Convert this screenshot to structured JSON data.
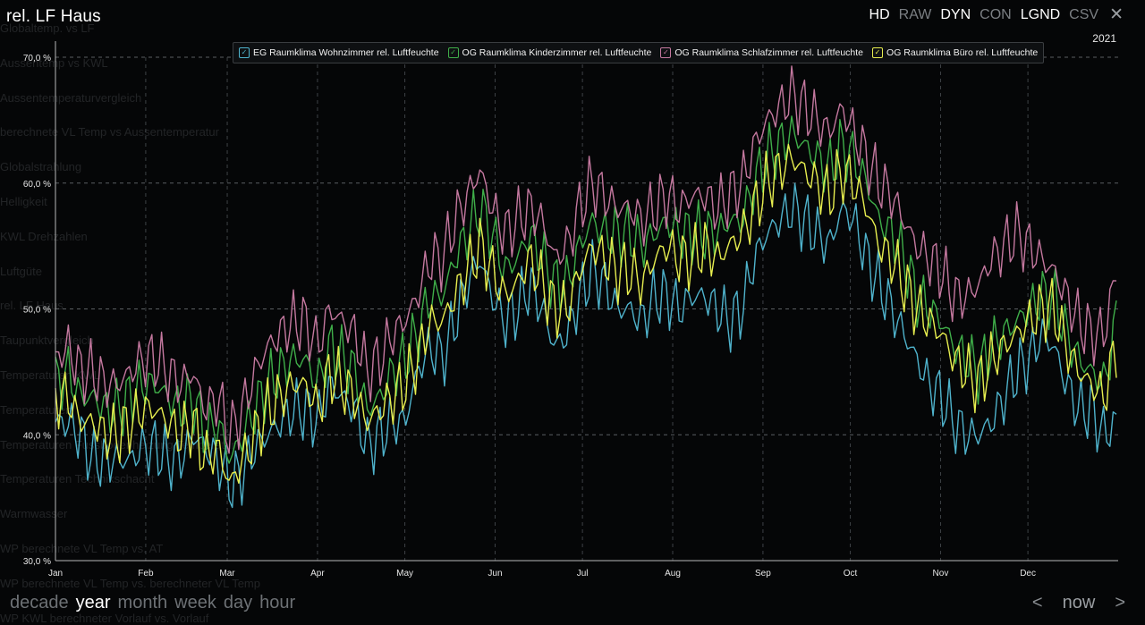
{
  "title": "rel. LF Haus",
  "modes": [
    {
      "label": "HD",
      "active": true
    },
    {
      "label": "RAW",
      "active": false
    },
    {
      "label": "DYN",
      "active": true
    },
    {
      "label": "CON",
      "active": false
    },
    {
      "label": "LGND",
      "active": true
    },
    {
      "label": "CSV",
      "active": false
    }
  ],
  "close_icon": "close-icon",
  "year_label": "2021",
  "background_menu": [
    "Globaltemp. vs LF",
    "Aussentemp vs KWL",
    "Aussentemperaturvergleich",
    "berechnete VL Temp vs Aussentemperatur",
    "Globalstrahlung",
    "Helligkeit",
    "KWL Drehzahlen",
    "Luftgüte",
    "rel. LF Haus",
    "Taupunktvergleich",
    "Temperaturen KWL",
    "Temperaturen",
    "Temperaturen Fussbodenheizung Temperatur",
    "Temperaturen Technikschacht",
    "Warmwasser",
    "WP berechnete VL Temp vs. AT",
    "WP berechnete VL Temp vs. berechneter VL Temp",
    "WP KWL berechneter Vorlauf vs. Vorlauf"
  ],
  "ranges": [
    {
      "label": "decade",
      "active": false
    },
    {
      "label": "year",
      "active": true
    },
    {
      "label": "month",
      "active": false
    },
    {
      "label": "week",
      "active": false
    },
    {
      "label": "day",
      "active": false
    },
    {
      "label": "hour",
      "active": false
    }
  ],
  "pager": {
    "prev": "<",
    "now": "now",
    "next": ">"
  },
  "chart_data": {
    "type": "line",
    "ylim": [
      30,
      70
    ],
    "yticks": [
      30,
      40,
      50,
      60,
      70
    ],
    "ytick_labels": [
      "30,0 %",
      "40,0 %",
      "50,0 %",
      "60,0 %",
      "70,0 %"
    ],
    "xticks": [
      "Jan",
      "Feb",
      "Mar",
      "Apr",
      "May",
      "Jun",
      "Jul",
      "Aug",
      "Sep",
      "Oct",
      "Nov",
      "Dec"
    ],
    "month_days": [
      31,
      28,
      31,
      30,
      31,
      30,
      31,
      31,
      30,
      31,
      30,
      31
    ],
    "grid": true,
    "legend_position": "top",
    "series": [
      {
        "name": "EG Raumklima Wohnzimmer rel. Luftfeuchte",
        "color": "#4fb3cc",
        "values": [
          41,
          41,
          40,
          38,
          38,
          38,
          38,
          39,
          39,
          38,
          38,
          40,
          39,
          38,
          36,
          37,
          39,
          40,
          41,
          42,
          42,
          41,
          44,
          43,
          42,
          39,
          40,
          41,
          41,
          45,
          47,
          46,
          49,
          52,
          54,
          51,
          49,
          50,
          52,
          50,
          47,
          48,
          51,
          53,
          52,
          50,
          50,
          49,
          51,
          51,
          50,
          51,
          51,
          50,
          49,
          50,
          54,
          56,
          57,
          58,
          57,
          56,
          55,
          58,
          57,
          54,
          52,
          50,
          48,
          46,
          44,
          43,
          41,
          40,
          40,
          41,
          43,
          45,
          46,
          48,
          47,
          44,
          42,
          42,
          40,
          41
        ]
      },
      {
        "name": "OG Raumklima Kinderzimmer rel. Luftfeuchte",
        "color": "#3fae49",
        "values": [
          44,
          45,
          43,
          43,
          42,
          42,
          43,
          44,
          44,
          43,
          42,
          43,
          40,
          41,
          38,
          40,
          42,
          44,
          45,
          46,
          46,
          44,
          47,
          46,
          45,
          42,
          43,
          45,
          46,
          48,
          51,
          51,
          54,
          56,
          58,
          56,
          53,
          54,
          56,
          54,
          52,
          52,
          55,
          57,
          56,
          56,
          56,
          55,
          56,
          57,
          56,
          56,
          56,
          56,
          57,
          57,
          60,
          62,
          63,
          64,
          63,
          62,
          61,
          63,
          62,
          60,
          57,
          56,
          54,
          51,
          50,
          49,
          47,
          46,
          45,
          47,
          48,
          49,
          50,
          51,
          51,
          48,
          46,
          45,
          44,
          49
        ]
      },
      {
        "name": "OG Raumklima Schlafzimmer rel. Luftfeuchte",
        "color": "#c4789f",
        "values": [
          46,
          47,
          45,
          45,
          44,
          44,
          45,
          46,
          46,
          45,
          44,
          45,
          42,
          43,
          40,
          42,
          45,
          47,
          48,
          49,
          49,
          47,
          50,
          49,
          48,
          45,
          46,
          48,
          49,
          51,
          54,
          54,
          57,
          59,
          61,
          58,
          56,
          57,
          58,
          57,
          54,
          55,
          58,
          60,
          59,
          58,
          58,
          57,
          58,
          59,
          58,
          59,
          59,
          58,
          59,
          60,
          63,
          65,
          66,
          67,
          66,
          65,
          64,
          66,
          64,
          62,
          60,
          59,
          57,
          55,
          54,
          53,
          51,
          51,
          52,
          54,
          55,
          56,
          55,
          54,
          53,
          51,
          49,
          48,
          48,
          53
        ]
      },
      {
        "name": "OG Raumklima Büro rel. Luftfeuchte",
        "color": "#e7ee4f",
        "values": [
          43,
          43,
          41,
          41,
          40,
          40,
          41,
          42,
          42,
          41,
          40,
          41,
          38,
          39,
          36,
          38,
          40,
          42,
          43,
          44,
          44,
          42,
          45,
          44,
          43,
          41,
          42,
          43,
          44,
          46,
          49,
          49,
          51,
          53,
          55,
          53,
          51,
          52,
          54,
          52,
          50,
          50,
          53,
          55,
          54,
          53,
          53,
          52,
          54,
          55,
          54,
          54,
          55,
          54,
          55,
          56,
          58,
          60,
          61,
          62,
          61,
          60,
          59,
          61,
          60,
          58,
          55,
          54,
          52,
          50,
          49,
          48,
          46,
          45,
          44,
          46,
          47,
          48,
          49,
          50,
          50,
          47,
          45,
          44,
          43,
          47
        ]
      }
    ]
  }
}
